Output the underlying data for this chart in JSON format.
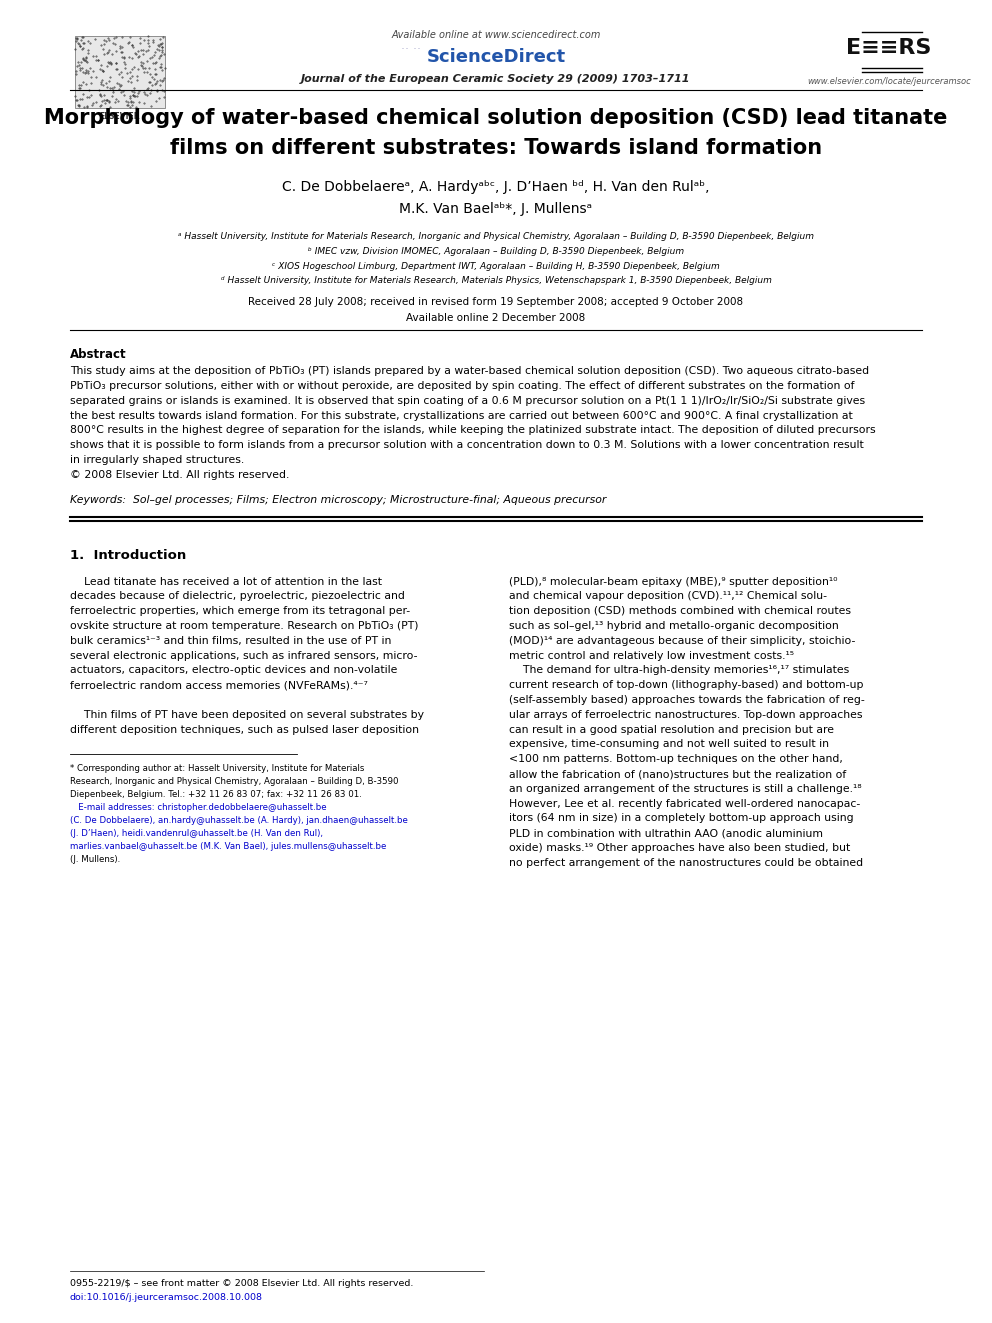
{
  "bg_color": "#ffffff",
  "page_width": 9.92,
  "page_height": 13.23,
  "dpi": 100,
  "header_available": "Available online at www.sciencedirect.com",
  "header_journal": "Journal of the European Ceramic Society 29 (2009) 1703–1711",
  "header_url": "www.elsevier.com/locate/jeurceramsoc",
  "title_line1": "Morphology of water-based chemical solution deposition (CSD) lead titanate",
  "title_line2": "films on different substrates: Towards island formation",
  "author_line1": "C. De Dobbelaereᵃ, A. Hardyᵃᵇᶜ, J. D’Haen ᵇᵈ, H. Van den Rulᵃᵇ,",
  "author_line2": "M.K. Van Baelᵃᵇ*, J. Mullensᵃ",
  "aff_a": "ᵃ Hasselt University, Institute for Materials Research, Inorganic and Physical Chemistry, Agoralaan – Building D, B-3590 Diepenbeek, Belgium",
  "aff_b": "ᵇ IMEC vzw, Division IMOMEC, Agoralaan – Building D, B-3590 Diepenbeek, Belgium",
  "aff_c": "ᶜ XIOS Hogeschool Limburg, Department IWT, Agoralaan – Building H, B-3590 Diepenbeek, Belgium",
  "aff_d": "ᵈ Hasselt University, Institute for Materials Research, Materials Physics, Wetenschapspark 1, B-3590 Diepenbeek, Belgium",
  "received": "Received 28 July 2008; received in revised form 19 September 2008; accepted 9 October 2008",
  "available_online": "Available online 2 December 2008",
  "abstract_title": "Abstract",
  "abstract_lines": [
    "This study aims at the deposition of PbTiO₃ (PT) islands prepared by a water-based chemical solution deposition (CSD). Two aqueous citrato-based",
    "PbTiO₃ precursor solutions, either with or without peroxide, are deposited by spin coating. The effect of different substrates on the formation of",
    "separated grains or islands is examined. It is observed that spin coating of a 0.6 M precursor solution on a Pt(1 1 1)/IrO₂/Ir/SiO₂/Si substrate gives",
    "the best results towards island formation. For this substrate, crystallizations are carried out between 600°C and 900°C. A final crystallization at",
    "800°C results in the highest degree of separation for the islands, while keeping the platinized substrate intact. The deposition of diluted precursors",
    "shows that it is possible to form islands from a precursor solution with a concentration down to 0.3 M. Solutions with a lower concentration result",
    "in irregularly shaped structures.",
    "© 2008 Elsevier Ltd. All rights reserved."
  ],
  "keywords": "Keywords:  Sol–gel processes; Films; Electron microscopy; Microstructure-final; Aqueous precursor",
  "section1": "1.  Introduction",
  "col1_lines": [
    "    Lead titanate has received a lot of attention in the last",
    "decades because of dielectric, pyroelectric, piezoelectric and",
    "ferroelectric properties, which emerge from its tetragonal per-",
    "ovskite structure at room temperature. Research on PbTiO₃ (PT)",
    "bulk ceramics¹⁻³ and thin films, resulted in the use of PT in",
    "several electronic applications, such as infrared sensors, micro-",
    "actuators, capacitors, electro-optic devices and non-volatile",
    "ferroelectric random access memories (NVFeRAMs).⁴⁻⁷",
    "",
    "    Thin films of PT have been deposited on several substrates by",
    "different deposition techniques, such as pulsed laser deposition"
  ],
  "col2_lines": [
    "(PLD),⁸ molecular-beam epitaxy (MBE),⁹ sputter deposition¹⁰",
    "and chemical vapour deposition (CVD).¹¹,¹² Chemical solu-",
    "tion deposition (CSD) methods combined with chemical routes",
    "such as sol–gel,¹³ hybrid and metallo-organic decomposition",
    "(MOD)¹⁴ are advantageous because of their simplicity, stoichio-",
    "metric control and relatively low investment costs.¹⁵",
    "    The demand for ultra-high-density memories¹⁶,¹⁷ stimulates",
    "current research of top-down (lithography-based) and bottom-up",
    "(self-assembly based) approaches towards the fabrication of reg-",
    "ular arrays of ferroelectric nanostructures. Top-down approaches",
    "can result in a good spatial resolution and precision but are",
    "expensive, time-consuming and not well suited to result in",
    "<100 nm patterns. Bottom-up techniques on the other hand,",
    "allow the fabrication of (nano)structures but the realization of",
    "an organized arrangement of the structures is still a challenge.¹⁸",
    "However, Lee et al. recently fabricated well-ordered nanocapac-",
    "itors (64 nm in size) in a completely bottom-up approach using",
    "PLD in combination with ultrathin AAO (anodic aluminium",
    "oxide) masks.¹⁹ Other approaches have also been studied, but",
    "no perfect arrangement of the nanostructures could be obtained"
  ],
  "footnote_star": "* Corresponding author at: Hasselt University, Institute for Materials",
  "footnote_lines": [
    "* Corresponding author at: Hasselt University, Institute for Materials",
    "Research, Inorganic and Physical Chemistry, Agoralaan – Building D, B-3590",
    "Diepenbeek, Belgium. Tel.: +32 11 26 83 07; fax: +32 11 26 83 01.",
    "   E-mail addresses: christopher.dedobbelaere@uhasselt.be",
    "(C. De Dobbelaere), an.hardy@uhasselt.be (A. Hardy), jan.dhaen@uhasselt.be",
    "(J. D’Haen), heidi.vandenrul@uhasselt.be (H. Van den Rul),",
    "marlies.vanbael@uhasselt.be (M.K. Van Bael), jules.mullens@uhasselt.be",
    "(J. Mullens)."
  ],
  "footer1": "0955-2219/$ – see front matter © 2008 Elsevier Ltd. All rights reserved.",
  "footer2": "doi:10.1016/j.jeurceramsoc.2008.10.008"
}
